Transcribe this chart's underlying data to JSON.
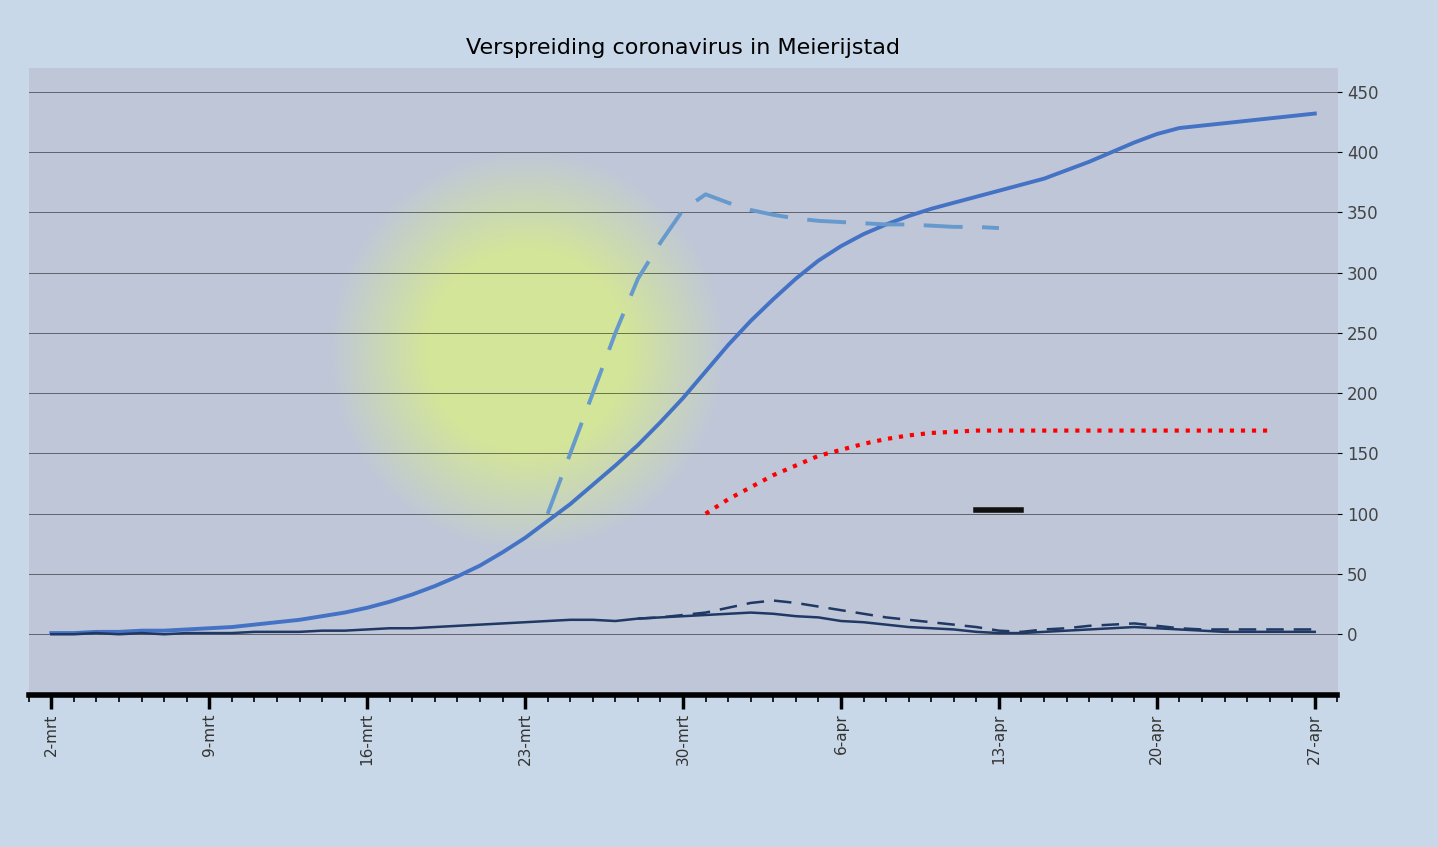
{
  "title": "Verspreiding coronavirus in Meierijstad",
  "x_labels": [
    "2-mrt",
    "9-mrt",
    "16-mrt",
    "23-mrt",
    "30-mrt",
    "6-apr",
    "13-apr",
    "20-apr",
    "27-apr"
  ],
  "x_indices": [
    0,
    7,
    14,
    21,
    28,
    35,
    42,
    49,
    56
  ],
  "ylim": [
    -50,
    470
  ],
  "yticks": [
    0,
    50,
    100,
    150,
    200,
    250,
    300,
    350,
    400,
    450
  ],
  "aantal_besmettingen": {
    "x": [
      0,
      1,
      2,
      3,
      4,
      5,
      6,
      7,
      8,
      9,
      10,
      11,
      12,
      13,
      14,
      15,
      16,
      17,
      18,
      19,
      20,
      21,
      22,
      23,
      24,
      25,
      26,
      27,
      28,
      29,
      30,
      31,
      32,
      33,
      34,
      35,
      36,
      37,
      38,
      39,
      40,
      41,
      42,
      43,
      44,
      45,
      46,
      47,
      48,
      49,
      50,
      51,
      52,
      53,
      54,
      55,
      56
    ],
    "y": [
      1,
      1,
      2,
      2,
      3,
      3,
      4,
      5,
      6,
      8,
      10,
      12,
      15,
      18,
      22,
      27,
      33,
      40,
      48,
      57,
      68,
      80,
      94,
      108,
      124,
      140,
      157,
      176,
      196,
      218,
      240,
      260,
      278,
      295,
      310,
      322,
      332,
      340,
      347,
      353,
      358,
      363,
      368,
      373,
      378,
      385,
      392,
      400,
      408,
      415,
      420,
      422,
      424,
      426,
      428,
      430,
      432
    ]
  },
  "toename_per_dag_solid": {
    "x": [
      0,
      1,
      2,
      3,
      4,
      5,
      6,
      7,
      8,
      9,
      10,
      11,
      12,
      13,
      14,
      15,
      16,
      17,
      18,
      19,
      20,
      21,
      22,
      23,
      24,
      25,
      26,
      27,
      28,
      29,
      30,
      31,
      32,
      33,
      34,
      35,
      36,
      37,
      38,
      39,
      40,
      41,
      42,
      43,
      44,
      45,
      46,
      47,
      48,
      49,
      50,
      51,
      52,
      53,
      54,
      55,
      56
    ],
    "y": [
      0,
      0,
      1,
      0,
      1,
      0,
      1,
      1,
      1,
      2,
      2,
      2,
      3,
      3,
      4,
      5,
      5,
      6,
      7,
      8,
      9,
      10,
      11,
      12,
      12,
      11,
      13,
      14,
      15,
      16,
      17,
      18,
      17,
      15,
      14,
      11,
      10,
      8,
      6,
      5,
      4,
      2,
      1,
      1,
      2,
      3,
      4,
      5,
      6,
      5,
      4,
      3,
      2,
      2,
      2,
      2,
      2
    ]
  },
  "toename_per_dag_dashed": {
    "x": [
      26,
      27,
      28,
      29,
      30,
      31,
      32,
      33,
      34,
      35,
      36,
      37,
      38,
      39,
      40,
      41,
      42,
      43,
      44,
      45,
      46,
      47,
      48,
      49,
      50,
      51,
      52,
      53,
      54,
      55,
      56
    ],
    "y": [
      13,
      14,
      16,
      18,
      22,
      26,
      28,
      26,
      23,
      20,
      17,
      14,
      12,
      10,
      8,
      6,
      3,
      2,
      4,
      5,
      7,
      8,
      9,
      7,
      5,
      4,
      4,
      4,
      4,
      4,
      4
    ]
  },
  "geschatte_besmettingen": {
    "x": [
      22,
      23,
      24,
      25,
      26,
      27,
      28,
      29,
      30,
      31,
      32,
      33,
      34,
      35,
      36,
      37,
      38,
      39,
      40,
      41,
      42
    ],
    "y": [
      100,
      150,
      200,
      250,
      295,
      325,
      352,
      365,
      358,
      352,
      348,
      345,
      343,
      342,
      341,
      340,
      340,
      339,
      338,
      338,
      337
    ]
  },
  "ziekenhuisopnamen": {
    "x": [
      29,
      30,
      31,
      32,
      33,
      34,
      35,
      36,
      37,
      38,
      39,
      40,
      41,
      42,
      43,
      44,
      45,
      46,
      47,
      48,
      49,
      50,
      51,
      52,
      53,
      54
    ],
    "y": [
      100,
      112,
      122,
      132,
      140,
      148,
      153,
      158,
      162,
      165,
      167,
      168,
      169,
      169,
      169,
      169,
      169,
      169,
      169,
      169,
      169,
      169,
      169,
      169,
      169,
      169
    ]
  },
  "overleden": {
    "x": [
      41,
      43
    ],
    "y": [
      103,
      103
    ]
  },
  "bg_color": "#c8d8e8"
}
